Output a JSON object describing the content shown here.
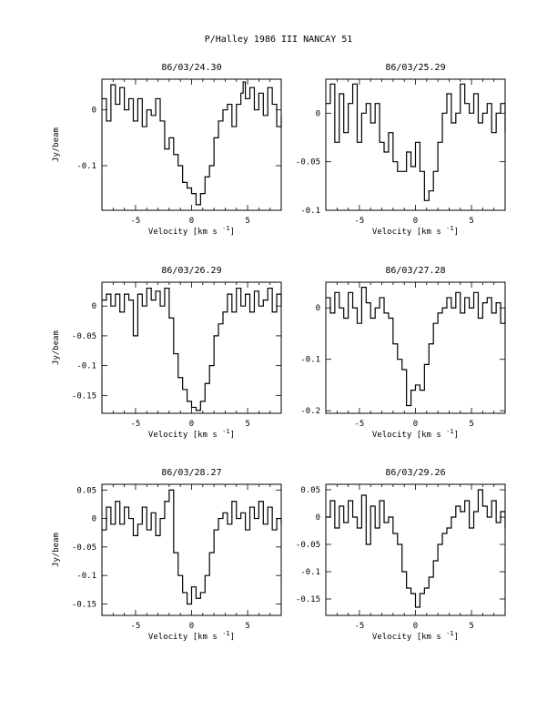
{
  "page": {
    "title": "P/Halley 1986 III    NANCAY     51"
  },
  "chart_data": [
    {
      "type": "line",
      "title": "86/03/24.30",
      "xlabel": "Velocity [km s",
      "xlabel_sup": "-1",
      "xlabel_end": "]",
      "ylabel": "Jy/beam",
      "xlim": [
        -8,
        8
      ],
      "ylim": [
        -0.18,
        0.055
      ],
      "xticks": [
        -5,
        0,
        5
      ],
      "yticks": [
        0,
        -0.1
      ],
      "ytick_labels": [
        "0",
        "-0.1"
      ],
      "series": [
        {
          "x": [
            -8,
            -7.6,
            -7.2,
            -6.8,
            -6.4,
            -6,
            -5.6,
            -5.2,
            -4.8,
            -4.4,
            -4,
            -3.6,
            -3.2,
            -2.8,
            -2.4,
            -2,
            -1.6,
            -1.2,
            -0.8,
            -0.4,
            0,
            0.4,
            0.8,
            1.2,
            1.6,
            2,
            2.4,
            2.8,
            3.2,
            3.6,
            4,
            4.4,
            4.6,
            4.8,
            5.2,
            5.6,
            6,
            6.4,
            6.8,
            7.2,
            7.6,
            8
          ],
          "y": [
            0.02,
            -0.02,
            0.045,
            0.01,
            0.04,
            0.0,
            0.02,
            -0.02,
            0.02,
            -0.03,
            0.0,
            -0.01,
            0.02,
            -0.02,
            -0.07,
            -0.05,
            -0.08,
            -0.1,
            -0.13,
            -0.14,
            -0.15,
            -0.17,
            -0.15,
            -0.12,
            -0.1,
            -0.05,
            -0.02,
            0.0,
            0.01,
            -0.03,
            0.01,
            0.03,
            0.05,
            0.02,
            0.04,
            0.0,
            0.03,
            -0.01,
            0.04,
            0.01,
            -0.03,
            -0.01
          ]
        }
      ]
    },
    {
      "type": "line",
      "title": "86/03/25.29",
      "xlabel": "Velocity [km s",
      "xlabel_sup": "-1",
      "xlabel_end": "]",
      "ylabel": "",
      "xlim": [
        -8,
        8
      ],
      "ylim": [
        -0.1,
        0.035
      ],
      "xticks": [
        -5,
        0,
        5
      ],
      "yticks": [
        0,
        -0.05,
        -0.1
      ],
      "ytick_labels": [
        "0",
        "-0.05",
        "-0.1"
      ],
      "series": [
        {
          "x": [
            -8,
            -7.6,
            -7.2,
            -6.8,
            -6.4,
            -6,
            -5.6,
            -5.2,
            -4.8,
            -4.4,
            -4,
            -3.6,
            -3.2,
            -2.8,
            -2.4,
            -2,
            -1.6,
            -1.2,
            -0.8,
            -0.4,
            0,
            0.4,
            0.8,
            1.2,
            1.6,
            2,
            2.4,
            2.8,
            3.2,
            3.6,
            4,
            4.4,
            4.8,
            5.2,
            5.6,
            6,
            6.4,
            6.8,
            7.2,
            7.6,
            8
          ],
          "y": [
            0.01,
            0.03,
            -0.03,
            0.02,
            -0.02,
            0.01,
            0.03,
            -0.03,
            0.0,
            0.01,
            -0.01,
            0.01,
            -0.03,
            -0.04,
            -0.02,
            -0.05,
            -0.06,
            -0.06,
            -0.04,
            -0.055,
            -0.03,
            -0.06,
            -0.09,
            -0.08,
            -0.06,
            -0.03,
            0.0,
            0.02,
            -0.01,
            0.0,
            0.03,
            0.01,
            0.0,
            0.02,
            -0.01,
            0.0,
            0.01,
            -0.02,
            0.0,
            0.01,
            -0.02
          ]
        }
      ]
    },
    {
      "type": "line",
      "title": "86/03/26.29",
      "xlabel": "Velocity [km s",
      "xlabel_sup": "-1",
      "xlabel_end": "]",
      "ylabel": "Jy/beam",
      "xlim": [
        -8,
        8
      ],
      "ylim": [
        -0.18,
        0.04
      ],
      "xticks": [
        -5,
        0,
        5
      ],
      "yticks": [
        0,
        -0.05,
        -0.1,
        -0.15
      ],
      "ytick_labels": [
        "0",
        "-0.05",
        "-0.1",
        "-0.15"
      ],
      "series": [
        {
          "x": [
            -8,
            -7.6,
            -7.2,
            -6.8,
            -6.4,
            -6,
            -5.6,
            -5.2,
            -4.8,
            -4.4,
            -4,
            -3.6,
            -3.2,
            -2.8,
            -2.4,
            -2,
            -1.6,
            -1.2,
            -0.8,
            -0.4,
            0,
            0.4,
            0.8,
            1.2,
            1.6,
            2,
            2.4,
            2.8,
            3.2,
            3.6,
            4,
            4.4,
            4.8,
            5.2,
            5.6,
            6,
            6.4,
            6.8,
            7.2,
            7.6,
            8
          ],
          "y": [
            0.01,
            0.02,
            0.0,
            0.02,
            -0.01,
            0.02,
            0.01,
            -0.05,
            0.02,
            0.0,
            0.03,
            0.01,
            0.025,
            0.0,
            0.03,
            -0.02,
            -0.08,
            -0.12,
            -0.14,
            -0.16,
            -0.17,
            -0.175,
            -0.16,
            -0.13,
            -0.1,
            -0.05,
            -0.03,
            -0.01,
            0.02,
            -0.01,
            0.03,
            0.0,
            0.02,
            -0.01,
            0.025,
            0.0,
            0.01,
            0.03,
            -0.01,
            0.02,
            0.0
          ]
        }
      ]
    },
    {
      "type": "line",
      "title": "86/03/27.28",
      "xlabel": "Velocity [km s",
      "xlabel_sup": "-1",
      "xlabel_end": "]",
      "ylabel": "",
      "xlim": [
        -8,
        8
      ],
      "ylim": [
        -0.205,
        0.05
      ],
      "xticks": [
        -5,
        0,
        5
      ],
      "yticks": [
        0,
        -0.1,
        -0.2
      ],
      "ytick_labels": [
        "0",
        "-0.1",
        "-0.2"
      ],
      "series": [
        {
          "x": [
            -8,
            -7.6,
            -7.2,
            -6.8,
            -6.4,
            -6,
            -5.6,
            -5.2,
            -4.8,
            -4.4,
            -4,
            -3.6,
            -3.2,
            -2.8,
            -2.4,
            -2,
            -1.6,
            -1.2,
            -0.8,
            -0.4,
            0,
            0.4,
            0.8,
            1.2,
            1.6,
            2,
            2.4,
            2.8,
            3.2,
            3.6,
            4,
            4.4,
            4.8,
            5.2,
            5.6,
            6,
            6.4,
            6.8,
            7.2,
            7.6,
            8
          ],
          "y": [
            0.02,
            -0.01,
            0.03,
            0.0,
            -0.02,
            0.03,
            0.0,
            -0.03,
            0.04,
            0.01,
            -0.02,
            0.0,
            0.02,
            -0.01,
            -0.02,
            -0.07,
            -0.1,
            -0.12,
            -0.19,
            -0.16,
            -0.15,
            -0.16,
            -0.11,
            -0.07,
            -0.03,
            -0.01,
            0.0,
            0.02,
            0.0,
            0.03,
            -0.01,
            0.02,
            0.0,
            0.03,
            -0.02,
            0.01,
            0.02,
            -0.01,
            0.01,
            -0.03,
            0.0
          ]
        }
      ]
    },
    {
      "type": "line",
      "title": "86/03/28.27",
      "xlabel": "Velocity [km s",
      "xlabel_sup": "-1",
      "xlabel_end": "]",
      "ylabel": "Jy/beam",
      "xlim": [
        -8,
        8
      ],
      "ylim": [
        -0.17,
        0.06
      ],
      "xticks": [
        -5,
        0,
        5
      ],
      "yticks": [
        0.05,
        0,
        -0.05,
        -0.1,
        -0.15
      ],
      "ytick_labels": [
        "0.05",
        "0",
        "-0.05",
        "-0.1",
        "-0.15"
      ],
      "series": [
        {
          "x": [
            -8,
            -7.6,
            -7.2,
            -6.8,
            -6.4,
            -6,
            -5.6,
            -5.2,
            -4.8,
            -4.4,
            -4,
            -3.6,
            -3.2,
            -2.8,
            -2.4,
            -2,
            -1.6,
            -1.2,
            -0.8,
            -0.4,
            0,
            0.4,
            0.8,
            1.2,
            1.6,
            2,
            2.4,
            2.8,
            3.2,
            3.6,
            4,
            4.4,
            4.8,
            5.2,
            5.6,
            6,
            6.4,
            6.8,
            7.2,
            7.6,
            8
          ],
          "y": [
            -0.02,
            0.02,
            -0.01,
            0.03,
            -0.01,
            0.02,
            0.0,
            -0.03,
            -0.01,
            0.02,
            -0.02,
            0.01,
            -0.03,
            0.0,
            0.03,
            0.05,
            -0.06,
            -0.1,
            -0.13,
            -0.15,
            -0.12,
            -0.14,
            -0.13,
            -0.1,
            -0.06,
            -0.02,
            0.0,
            0.01,
            -0.01,
            0.03,
            0.0,
            0.01,
            -0.02,
            0.02,
            0.0,
            0.03,
            -0.01,
            0.02,
            -0.02,
            0.0,
            -0.01
          ]
        }
      ]
    },
    {
      "type": "line",
      "title": "86/03/29.26",
      "xlabel": "Velocity [km s",
      "xlabel_sup": "-1",
      "xlabel_end": "]",
      "ylabel": "",
      "xlim": [
        -8,
        8
      ],
      "ylim": [
        -0.18,
        0.06
      ],
      "xticks": [
        -5,
        0,
        5
      ],
      "yticks": [
        0.05,
        0,
        -0.05,
        -0.1,
        -0.15
      ],
      "ytick_labels": [
        "0.05",
        "0",
        "-0.05",
        "-0.1",
        "-0.15"
      ],
      "series": [
        {
          "x": [
            -8,
            -7.6,
            -7.2,
            -6.8,
            -6.4,
            -6,
            -5.6,
            -5.2,
            -4.8,
            -4.4,
            -4,
            -3.6,
            -3.2,
            -2.8,
            -2.4,
            -2,
            -1.6,
            -1.2,
            -0.8,
            -0.4,
            0,
            0.4,
            0.8,
            1.2,
            1.6,
            2,
            2.4,
            2.8,
            3.2,
            3.6,
            4,
            4.4,
            4.8,
            5.2,
            5.6,
            6,
            6.4,
            6.8,
            7.2,
            7.6,
            8
          ],
          "y": [
            0.0,
            0.03,
            -0.02,
            0.02,
            -0.01,
            0.03,
            0.0,
            -0.02,
            0.04,
            -0.05,
            0.02,
            -0.02,
            0.03,
            -0.01,
            0.0,
            -0.03,
            -0.05,
            -0.1,
            -0.13,
            -0.14,
            -0.165,
            -0.14,
            -0.13,
            -0.11,
            -0.08,
            -0.05,
            -0.03,
            -0.02,
            0.0,
            0.02,
            0.01,
            0.03,
            -0.02,
            0.01,
            0.05,
            0.02,
            0.0,
            0.03,
            -0.01,
            0.01,
            -0.02
          ]
        }
      ]
    }
  ]
}
